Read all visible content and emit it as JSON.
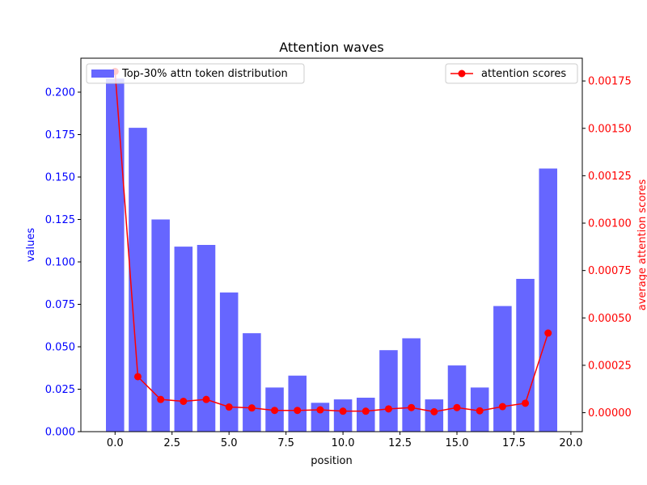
{
  "chart_data": {
    "type": "bar+line",
    "title": "Attention waves",
    "xlabel": "position",
    "ylabel_left": "values",
    "ylabel_right": "average attention scores",
    "xlim": [
      -1.5,
      20.5
    ],
    "ylim_left": [
      0,
      0.22
    ],
    "ylim_right": [
      -0.0001,
      0.00187
    ],
    "x_ticks": [
      0.0,
      2.5,
      5.0,
      7.5,
      10.0,
      12.5,
      15.0,
      17.5,
      20.0
    ],
    "x_tick_labels": [
      "0.0",
      "2.5",
      "5.0",
      "7.5",
      "10.0",
      "12.5",
      "15.0",
      "17.5",
      "20.0"
    ],
    "y_left_ticks": [
      0.0,
      0.025,
      0.05,
      0.075,
      0.1,
      0.125,
      0.15,
      0.175,
      0.2
    ],
    "y_left_tick_labels": [
      "0.000",
      "0.025",
      "0.050",
      "0.075",
      "0.100",
      "0.125",
      "0.150",
      "0.175",
      "0.200"
    ],
    "y_right_ticks": [
      0.0,
      0.00025,
      0.0005,
      0.00075,
      0.001,
      0.00125,
      0.0015,
      0.00175
    ],
    "y_right_tick_labels": [
      "0.00000",
      "0.00025",
      "0.00050",
      "0.00075",
      "0.00100",
      "0.00125",
      "0.00150",
      "0.00175"
    ],
    "x": [
      0,
      1,
      2,
      3,
      4,
      5,
      6,
      7,
      8,
      9,
      10,
      11,
      12,
      13,
      14,
      15,
      16,
      17,
      18,
      19
    ],
    "series": [
      {
        "name": "Top-30% attn token distribution",
        "kind": "bar",
        "axis": "left",
        "color": "#6666ff",
        "values": [
          0.208,
          0.179,
          0.125,
          0.109,
          0.11,
          0.082,
          0.058,
          0.026,
          0.033,
          0.017,
          0.019,
          0.02,
          0.048,
          0.055,
          0.019,
          0.039,
          0.026,
          0.074,
          0.09,
          0.155
        ]
      },
      {
        "name": "attention scores",
        "kind": "line",
        "axis": "right",
        "color": "#ff0000",
        "values": [
          0.0018,
          0.00019,
          7e-05,
          6e-05,
          7e-05,
          3e-05,
          2.5e-05,
          1.2e-05,
          1.2e-05,
          1.5e-05,
          8e-06,
          8e-06,
          2e-05,
          2.7e-05,
          5e-06,
          2.7e-05,
          1e-05,
          3.2e-05,
          5e-05,
          0.00042
        ]
      }
    ],
    "legend_left_position": "upper-left",
    "legend_right_position": "upper-right",
    "left_axis_color": "#0000ff",
    "right_axis_color": "#ff0000"
  }
}
